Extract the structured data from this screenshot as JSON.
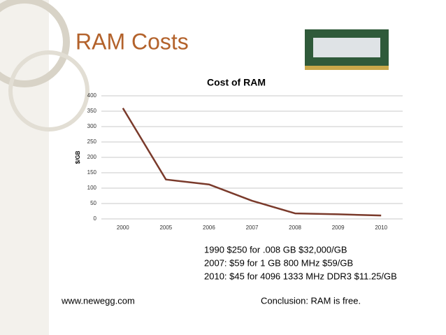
{
  "slide_title": "RAM Costs",
  "chart_data": {
    "type": "line",
    "title": "Cost of RAM",
    "y_label": "$/GB",
    "categories": [
      "2000",
      "2005",
      "2006",
      "2007",
      "2008",
      "2009",
      "2010"
    ],
    "values": [
      360,
      128,
      112,
      59,
      18,
      15,
      11
    ],
    "color": "#7a3a2b",
    "ylim": [
      0,
      400
    ],
    "yticks": [
      0,
      50,
      100,
      150,
      200,
      250,
      300,
      350,
      400
    ],
    "grid": true
  },
  "notes": [
    "1990 $250 for .008 GB $32,000/GB",
    "2007: $59 for 1 GB 800 MHz $59/GB",
    "2010: $45 for 4096 1333 MHz DDR3 $11.25/GB"
  ],
  "source": "www.newegg.com",
  "conclusion": "Conclusion: RAM is free."
}
